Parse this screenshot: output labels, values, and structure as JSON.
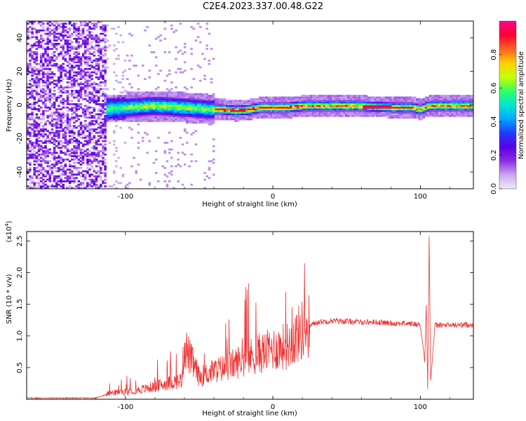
{
  "title": "C2E4.2023.337.00.48.G22",
  "chart_data": [
    {
      "type": "heatmap",
      "xlabel": "Height of straight line (km)",
      "ylabel": "Frequency (Hz)",
      "xlim": [
        -167,
        136
      ],
      "ylim": [
        -50,
        50
      ],
      "xticks": [
        -100,
        0,
        100
      ],
      "yticks": [
        -40,
        -20,
        0,
        20,
        40
      ],
      "colorbar": {
        "label": "Normalized spectral amplitude",
        "range": [
          0,
          1
        ],
        "ticks": [
          "0.0",
          "0.2",
          "0.4",
          "0.6",
          "0.8"
        ],
        "colors": [
          "#f2eaf9",
          "#c9a6ef",
          "#8a2be2",
          "#5a00e6",
          "#1f3cff",
          "#00a8ff",
          "#00e8d0",
          "#32ff60",
          "#c8ff00",
          "#ffd000",
          "#ff6020",
          "#ff0030",
          "#ff0090"
        ]
      },
      "ridge": {
        "x": [
          -115,
          -100,
          -80,
          -60,
          -45,
          -35,
          -25,
          -15,
          -10,
          -5,
          0,
          10,
          20,
          40,
          60,
          80,
          95,
          98,
          100,
          105,
          120,
          136
        ],
        "freq_hz": [
          -3,
          -2,
          -1,
          -2,
          -3,
          -3,
          -4,
          -3,
          -2,
          -2,
          -2,
          -2,
          -1,
          -1,
          -1,
          -2,
          -2,
          -3,
          -3,
          -1,
          -1,
          -1
        ]
      }
    },
    {
      "type": "line",
      "xlabel": "Height of straight line (km)",
      "ylabel": "SNR (10 * v/v)",
      "multiplier": "(x10",
      "multiplier_exp": "4",
      "multiplier_close": ")",
      "xlim": [
        -167,
        136
      ],
      "ylim": [
        0,
        26500
      ],
      "xticks": [
        -100,
        0,
        100
      ],
      "yticks": [
        5000,
        10000,
        15000,
        20000,
        25000
      ],
      "ytick_labels": [
        "0.5",
        "1.0",
        "1.5",
        "2.0",
        "2.5"
      ],
      "color": "#ee3333",
      "series": [
        {
          "x": [
            -167,
            -140,
            -120,
            -110,
            -100,
            -90,
            -80,
            -70,
            -62,
            -60,
            -50,
            -40,
            -30,
            -20,
            -10,
            -5,
            0,
            10,
            20,
            30,
            40,
            50,
            60,
            70,
            80,
            90,
            100,
            103,
            104,
            105,
            106,
            107,
            110,
            120,
            136
          ],
          "values": [
            200,
            200,
            200,
            1000,
            1200,
            1500,
            2000,
            2600,
            3000,
            8500,
            3500,
            4500,
            5200,
            6300,
            7200,
            7500,
            8000,
            8500,
            11000,
            12200,
            12400,
            12300,
            12200,
            12200,
            12000,
            12000,
            11800,
            6000,
            15000,
            2000,
            26000,
            3000,
            11700,
            11700,
            11800
          ]
        }
      ]
    }
  ]
}
